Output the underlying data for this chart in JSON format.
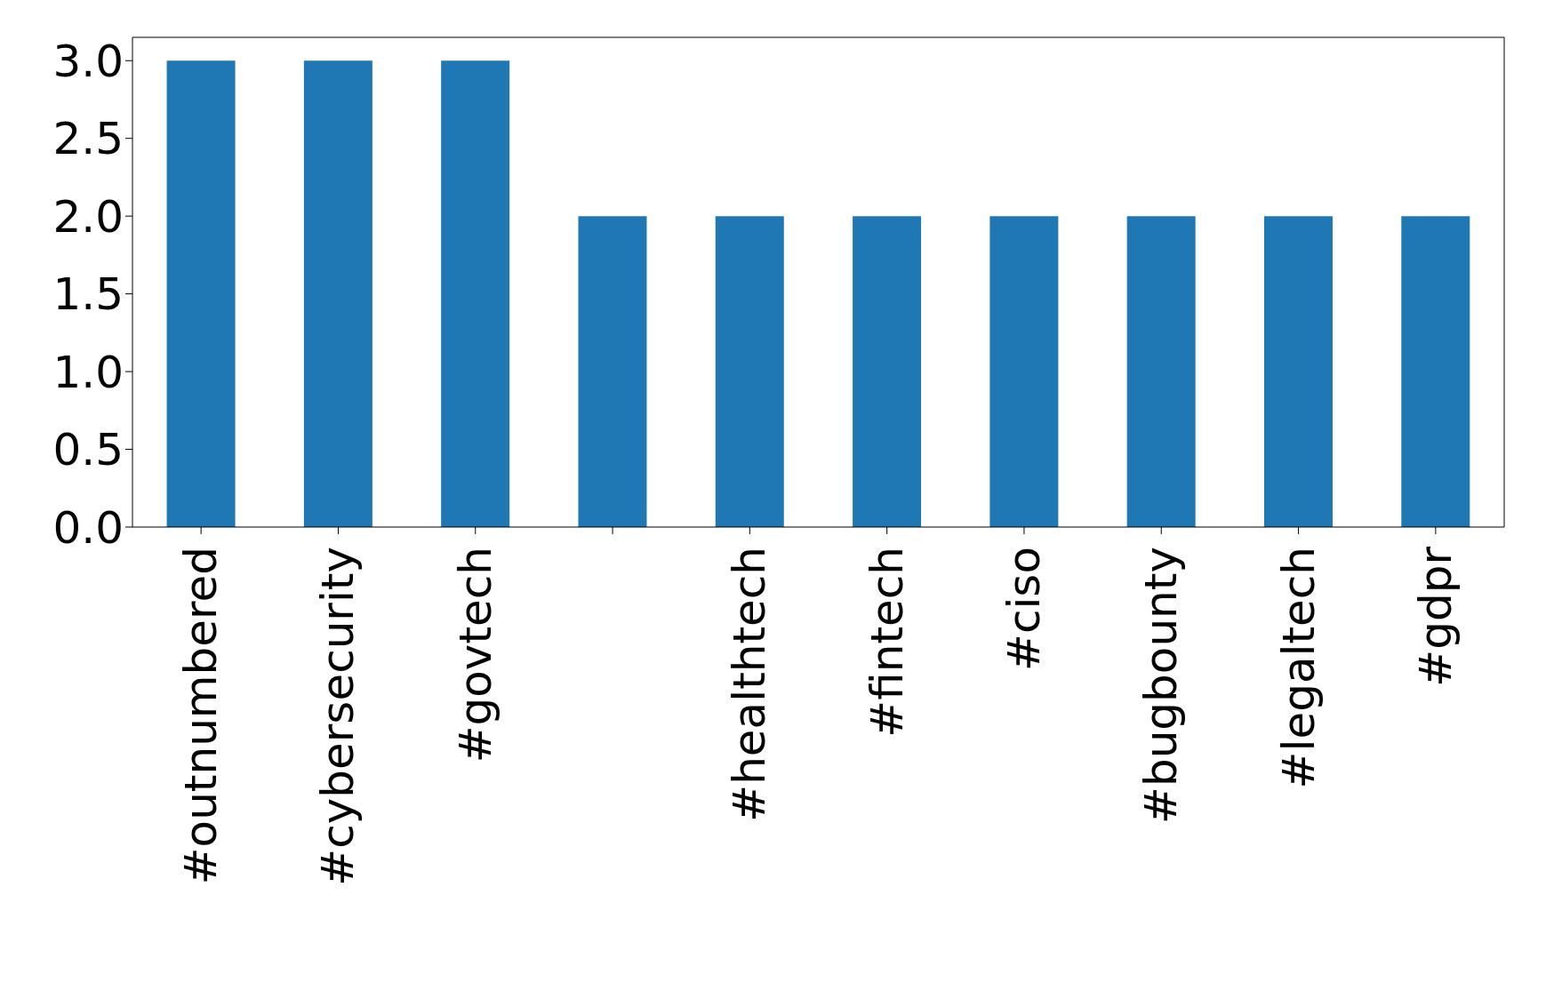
{
  "chart_data": {
    "type": "bar",
    "categories": [
      "#outnumbered",
      "#cybersecurity",
      "#govtech",
      null,
      "#healthtech",
      "#fintech",
      "#ciso",
      "#bugbounty",
      "#legaltech",
      "#gdpr"
    ],
    "values": [
      3,
      3,
      3,
      2,
      2,
      2,
      2,
      2,
      2,
      2
    ],
    "color": "#1f77b4",
    "ylim": [
      0,
      3.15
    ],
    "yticks": [
      {
        "value": 0,
        "label": "0.0"
      },
      {
        "value": 0.5,
        "label": "0.5"
      },
      {
        "value": 1,
        "label": "1.0"
      },
      {
        "value": 1.5,
        "label": "1.5"
      },
      {
        "value": 2,
        "label": "2.0"
      },
      {
        "value": 2.5,
        "label": "2.5"
      },
      {
        "value": 3,
        "label": "3.0"
      }
    ],
    "grid": false,
    "legend": false
  }
}
